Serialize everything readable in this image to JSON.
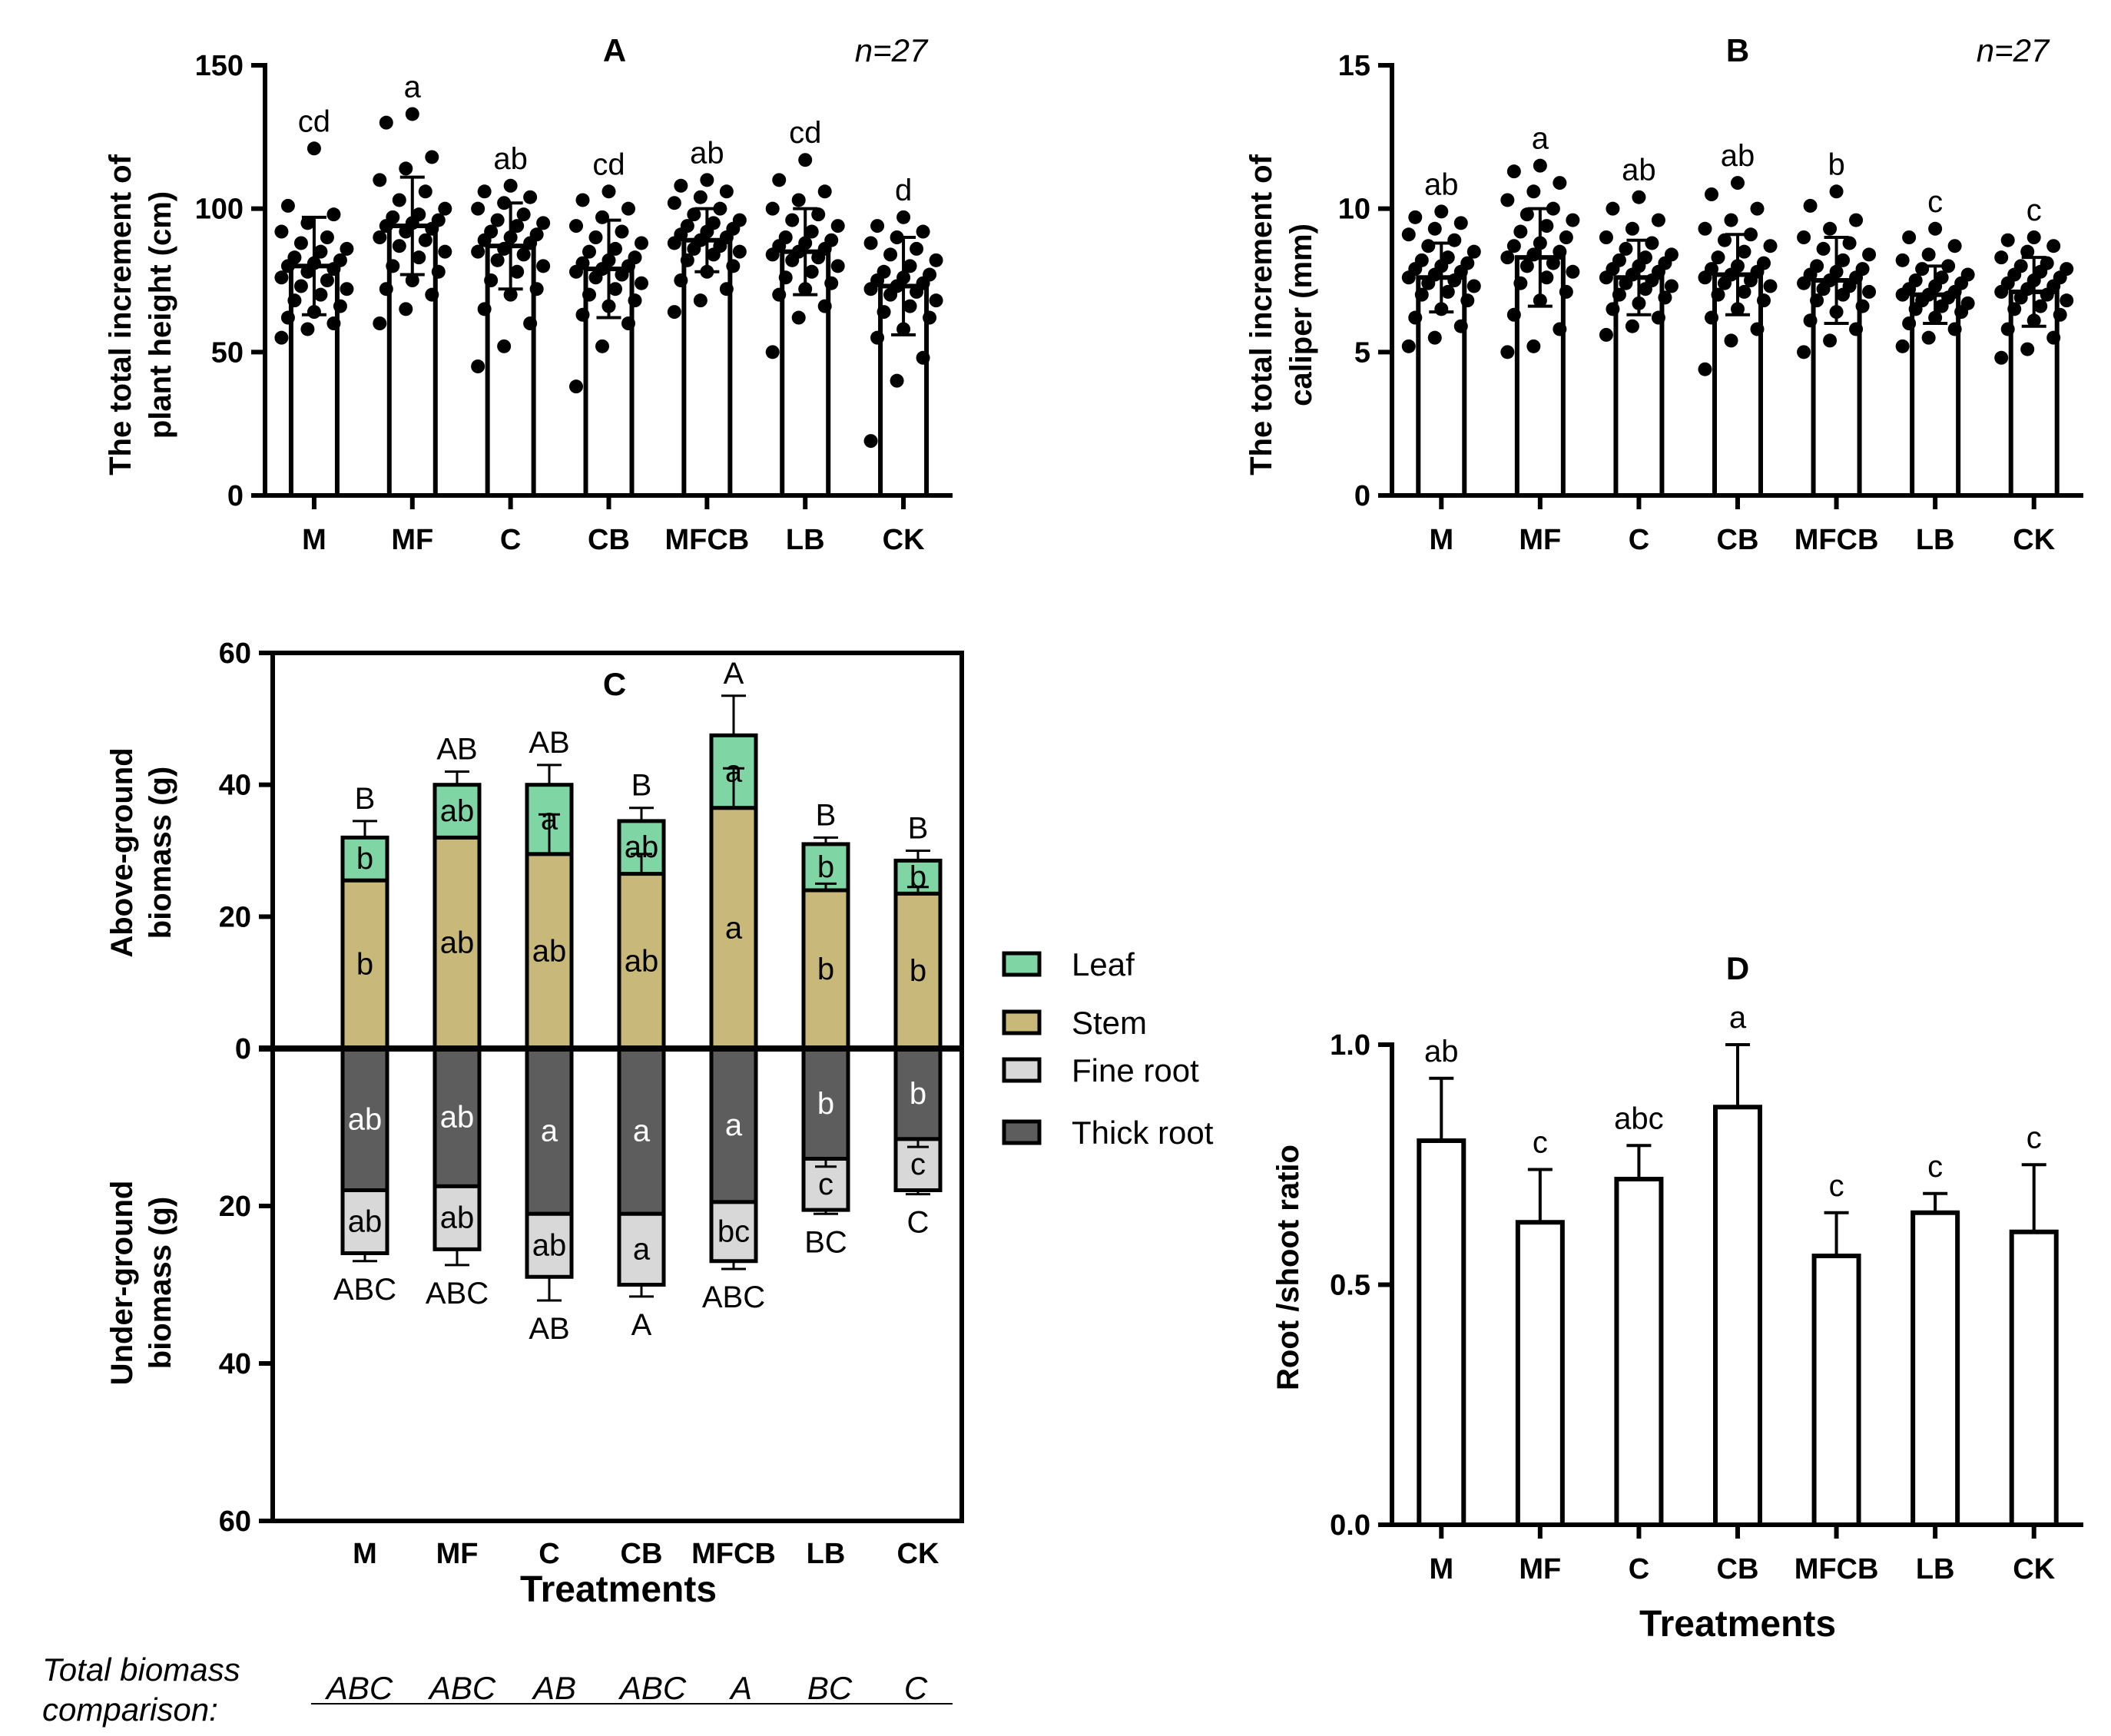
{
  "categories": [
    "M",
    "MF",
    "C",
    "CB",
    "MFCB",
    "LB",
    "CK"
  ],
  "colors": {
    "leaf": "#7fd6a4",
    "stem": "#c8b87a",
    "fine_root": "#d8d8d8",
    "thick_root": "#5d5d5d",
    "ink": "#000000"
  },
  "chart_data": [
    {
      "id": "A",
      "type": "bar",
      "title": "A",
      "annotation": "n=27",
      "ylabel_lines": [
        "The total increment of",
        "plant height (cm)"
      ],
      "ylim": [
        0,
        150
      ],
      "yticks": [
        "0",
        "50",
        "100",
        "150"
      ],
      "categories": [
        "M",
        "MF",
        "C",
        "CB",
        "MFCB",
        "LB",
        "CK"
      ],
      "values": [
        80,
        94,
        87,
        79,
        89,
        85,
        73
      ],
      "errors": [
        17,
        17,
        15,
        17,
        11,
        15,
        17
      ],
      "letters": [
        "cd",
        "a",
        "ab",
        "cd",
        "ab",
        "cd",
        "d"
      ],
      "points": [
        [
          55,
          58,
          60,
          62,
          64,
          66,
          68,
          70,
          72,
          73,
          75,
          76,
          78,
          79,
          80,
          81,
          82,
          83,
          85,
          86,
          88,
          90,
          92,
          95,
          98,
          101,
          121
        ],
        [
          60,
          65,
          70,
          72,
          75,
          78,
          80,
          83,
          85,
          87,
          89,
          90,
          92,
          93,
          94,
          95,
          96,
          97,
          98,
          100,
          103,
          106,
          110,
          114,
          118,
          130,
          133
        ],
        [
          45,
          52,
          60,
          65,
          70,
          72,
          75,
          78,
          80,
          82,
          84,
          85,
          86,
          88,
          89,
          90,
          91,
          92,
          94,
          95,
          96,
          98,
          100,
          102,
          104,
          106,
          108
        ],
        [
          38,
          52,
          60,
          63,
          66,
          68,
          70,
          72,
          74,
          76,
          77,
          78,
          79,
          80,
          81,
          82,
          83,
          85,
          86,
          88,
          90,
          92,
          94,
          97,
          100,
          103,
          106
        ],
        [
          64,
          68,
          72,
          75,
          78,
          80,
          82,
          84,
          85,
          86,
          87,
          88,
          89,
          90,
          91,
          92,
          93,
          94,
          95,
          96,
          98,
          100,
          102,
          104,
          106,
          108,
          110
        ],
        [
          50,
          62,
          66,
          70,
          72,
          74,
          76,
          78,
          80,
          82,
          83,
          84,
          85,
          86,
          87,
          88,
          89,
          90,
          92,
          94,
          96,
          98,
          100,
          103,
          106,
          110,
          117
        ],
        [
          19,
          40,
          48,
          55,
          58,
          62,
          64,
          66,
          68,
          70,
          71,
          72,
          73,
          74,
          75,
          76,
          77,
          78,
          80,
          82,
          84,
          86,
          88,
          90,
          92,
          94,
          97
        ]
      ]
    },
    {
      "id": "B",
      "type": "bar",
      "title": "B",
      "annotation": "n=27",
      "ylabel_lines": [
        "The total increment of",
        "caliper (mm)"
      ],
      "ylim": [
        0,
        15
      ],
      "yticks": [
        "0",
        "5",
        "10",
        "15"
      ],
      "categories": [
        "M",
        "MF",
        "C",
        "CB",
        "MFCB",
        "LB",
        "CK"
      ],
      "values": [
        7.6,
        8.3,
        7.6,
        7.7,
        7.5,
        7.0,
        7.1
      ],
      "errors": [
        1.2,
        1.7,
        1.3,
        1.4,
        1.5,
        1.0,
        1.2
      ],
      "letters": [
        "ab",
        "a",
        "ab",
        "ab",
        "b",
        "c",
        "c"
      ],
      "points": [
        [
          5.2,
          5.5,
          5.9,
          6.2,
          6.5,
          6.8,
          7.0,
          7.1,
          7.3,
          7.4,
          7.5,
          7.6,
          7.7,
          7.8,
          7.9,
          8.0,
          8.1,
          8.2,
          8.3,
          8.5,
          8.7,
          8.9,
          9.1,
          9.3,
          9.5,
          9.7,
          9.9
        ],
        [
          5.0,
          5.2,
          5.8,
          6.3,
          6.8,
          7.1,
          7.4,
          7.6,
          7.8,
          8.0,
          8.1,
          8.3,
          8.4,
          8.5,
          8.7,
          8.8,
          9.0,
          9.2,
          9.4,
          9.6,
          9.8,
          10.0,
          10.3,
          10.6,
          10.9,
          11.3,
          11.5
        ],
        [
          5.6,
          5.9,
          6.2,
          6.5,
          6.7,
          6.9,
          7.0,
          7.2,
          7.3,
          7.4,
          7.5,
          7.6,
          7.7,
          7.8,
          7.9,
          8.0,
          8.1,
          8.2,
          8.3,
          8.4,
          8.6,
          8.8,
          9.0,
          9.3,
          9.6,
          10.0,
          10.4
        ],
        [
          4.4,
          5.4,
          5.8,
          6.2,
          6.5,
          6.8,
          7.0,
          7.1,
          7.3,
          7.4,
          7.5,
          7.6,
          7.7,
          7.8,
          7.9,
          8.0,
          8.1,
          8.3,
          8.5,
          8.7,
          8.9,
          9.1,
          9.3,
          9.6,
          10.0,
          10.5,
          10.9
        ],
        [
          5.0,
          5.4,
          5.8,
          6.1,
          6.4,
          6.6,
          6.8,
          7.0,
          7.1,
          7.2,
          7.3,
          7.4,
          7.5,
          7.6,
          7.7,
          7.8,
          7.9,
          8.0,
          8.2,
          8.4,
          8.6,
          8.8,
          9.0,
          9.3,
          9.6,
          10.1,
          10.6
        ],
        [
          5.2,
          5.5,
          5.8,
          6.0,
          6.2,
          6.4,
          6.5,
          6.6,
          6.7,
          6.8,
          6.9,
          7.0,
          7.0,
          7.1,
          7.2,
          7.3,
          7.4,
          7.5,
          7.6,
          7.7,
          7.9,
          8.0,
          8.2,
          8.4,
          8.7,
          9.0,
          9.3
        ],
        [
          4.8,
          5.1,
          5.5,
          5.8,
          6.1,
          6.3,
          6.5,
          6.6,
          6.8,
          6.9,
          7.0,
          7.1,
          7.2,
          7.3,
          7.4,
          7.5,
          7.6,
          7.7,
          7.8,
          7.9,
          8.0,
          8.1,
          8.3,
          8.5,
          8.7,
          8.9,
          9.0
        ]
      ]
    },
    {
      "id": "C",
      "type": "bar",
      "stacked": true,
      "title": "C",
      "ylabel_top_lines": [
        "Above-ground",
        "biomass (g)"
      ],
      "ylabel_bottom_lines": [
        "Under-ground",
        "biomass (g)"
      ],
      "ylim_above": [
        0,
        60
      ],
      "ylim_below": [
        0,
        60
      ],
      "yticks_above": [
        "0",
        "20",
        "40",
        "60"
      ],
      "yticks_below": [
        "20",
        "40",
        "60"
      ],
      "xlabel": "Treatments",
      "categories": [
        "M",
        "MF",
        "C",
        "CB",
        "MFCB",
        "LB",
        "CK"
      ],
      "series": [
        {
          "name": "Leaf",
          "values": [
            6.5,
            8.0,
            10.5,
            8.0,
            11.0,
            7.0,
            5.0
          ],
          "errors": [
            2.5,
            2.0,
            3.0,
            2.0,
            6.0,
            1.0,
            1.5
          ],
          "letters": [
            "b",
            "ab",
            "a",
            "ab",
            "a",
            "b",
            "b"
          ]
        },
        {
          "name": "Stem",
          "values": [
            25.5,
            32.0,
            29.5,
            26.5,
            36.5,
            24.0,
            23.5
          ],
          "errors": [
            0,
            0,
            6.0,
            3.0,
            6.0,
            1.0,
            1.0
          ],
          "letters": [
            "b",
            "ab",
            "ab",
            "ab",
            "a",
            "b",
            "b"
          ]
        },
        {
          "name": "Thick root",
          "values": [
            18.0,
            17.5,
            21.0,
            21.0,
            19.5,
            14.0,
            11.5
          ],
          "errors": [
            0,
            0,
            0,
            0,
            0,
            1.0,
            1.0
          ],
          "letters": [
            "ab",
            "ab",
            "a",
            "a",
            "a",
            "b",
            "b"
          ]
        },
        {
          "name": "Fine root",
          "values": [
            8.0,
            8.0,
            8.0,
            9.0,
            7.5,
            6.5,
            6.5
          ],
          "errors": [
            1.0,
            2.0,
            3.0,
            1.5,
            1.0,
            0.5,
            0.5
          ],
          "letters": [
            "ab",
            "ab",
            "ab",
            "a",
            "bc",
            "c",
            "c"
          ]
        }
      ],
      "above_letters": [
        "B",
        "AB",
        "AB",
        "B",
        "A",
        "B",
        "B"
      ],
      "below_letters": [
        "ABC",
        "ABC",
        "AB",
        "A",
        "ABC",
        "BC",
        "C"
      ]
    },
    {
      "id": "D",
      "type": "bar",
      "title": "D",
      "ylabel": "Root /shoot ratio",
      "xlabel": "Treatments",
      "ylim": [
        0,
        1.0
      ],
      "yticks": [
        "0.0",
        "0.5",
        "1.0"
      ],
      "categories": [
        "M",
        "MF",
        "C",
        "CB",
        "MFCB",
        "LB",
        "CK"
      ],
      "values": [
        0.8,
        0.63,
        0.72,
        0.87,
        0.56,
        0.65,
        0.61
      ],
      "errors": [
        0.13,
        0.11,
        0.07,
        0.13,
        0.09,
        0.04,
        0.14
      ],
      "letters": [
        "ab",
        "c",
        "abc",
        "a",
        "c",
        "c",
        "c"
      ]
    }
  ],
  "legend": {
    "leaf": "Leaf",
    "stem": "Stem",
    "fine_root": "Fine root",
    "thick_root": "Thick root"
  },
  "total_biomass": {
    "label_lines": [
      "Total biomass",
      "comparison:"
    ],
    "values": [
      "ABC",
      "ABC",
      "AB",
      "ABC",
      "A",
      "BC",
      "C"
    ]
  }
}
